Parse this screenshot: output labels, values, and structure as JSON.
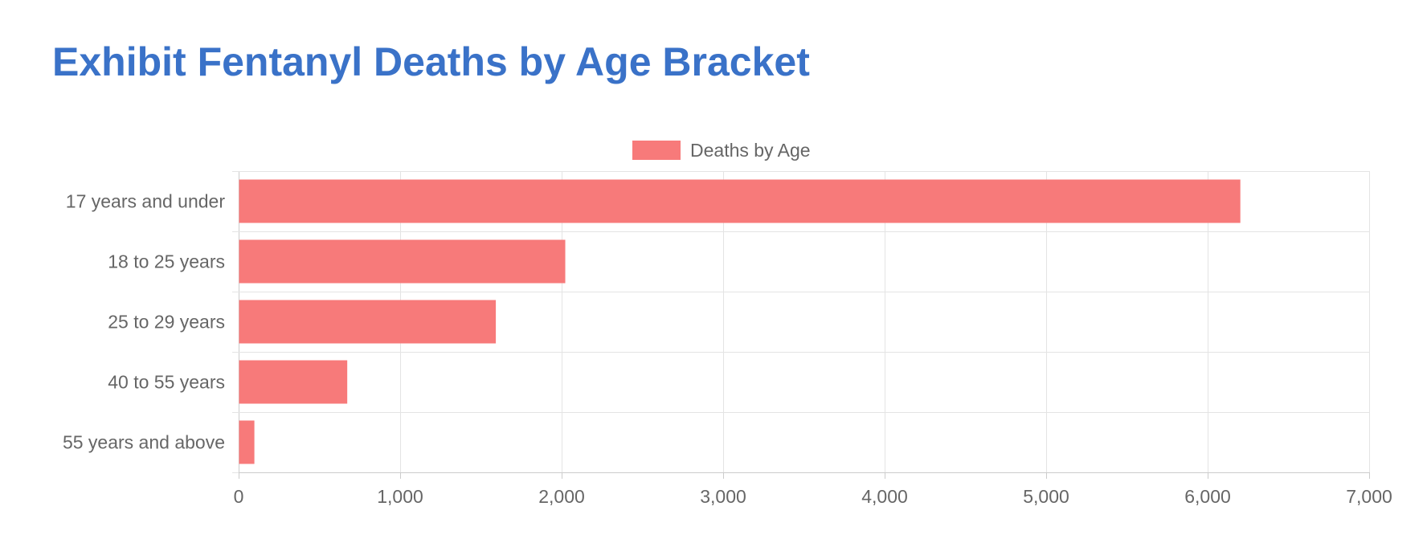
{
  "page": {
    "title": "Exhibit Fentanyl Deaths by Age Bracket"
  },
  "chart_data": {
    "type": "bar",
    "orientation": "horizontal",
    "title": "Exhibit Fentanyl Deaths by Age Bracket",
    "categories": [
      "17 years and under",
      "18 to 25 years",
      "25 to 29 years",
      "40 to 55 years",
      "55 years and above"
    ],
    "series": [
      {
        "name": "Deaths by Age",
        "values": [
          6200,
          2020,
          1590,
          670,
          95
        ],
        "color": "#f77a7a"
      }
    ],
    "xlim": [
      0,
      7000
    ],
    "xticks": [
      "0",
      "1,000",
      "2,000",
      "3,000",
      "4,000",
      "5,000",
      "6,000",
      "7,000"
    ],
    "xtick_values": [
      0,
      1000,
      2000,
      3000,
      4000,
      5000,
      6000,
      7000
    ],
    "xlabel": "",
    "ylabel": "",
    "grid": true,
    "legend_position": "top-center"
  }
}
